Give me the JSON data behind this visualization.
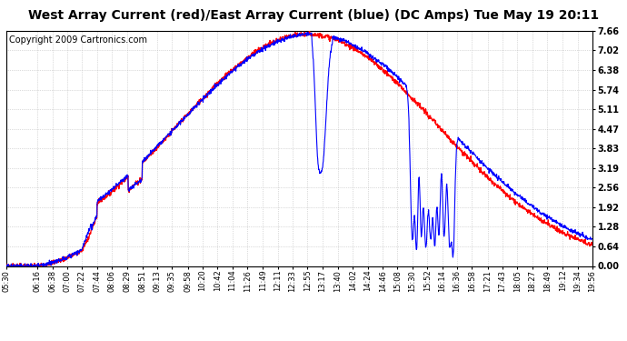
{
  "title": "West Array Current (red)/East Array Current (blue) (DC Amps) Tue May 19 20:11",
  "copyright": "Copyright 2009 Cartronics.com",
  "ylabel_right_ticks": [
    0.0,
    0.64,
    1.28,
    1.92,
    2.56,
    3.19,
    3.83,
    4.47,
    5.11,
    5.74,
    6.38,
    7.02,
    7.66
  ],
  "ymax": 7.66,
  "ymin": 0.0,
  "grid_color": "#bbbbbb",
  "x_labels": [
    "05:30",
    "06:16",
    "06:38",
    "07:00",
    "07:22",
    "07:44",
    "08:06",
    "08:29",
    "08:51",
    "09:13",
    "09:35",
    "09:58",
    "10:20",
    "10:42",
    "11:04",
    "11:26",
    "11:49",
    "12:11",
    "12:33",
    "12:55",
    "13:17",
    "13:40",
    "14:02",
    "14:24",
    "14:46",
    "15:08",
    "15:30",
    "15:52",
    "16:14",
    "16:36",
    "16:58",
    "17:21",
    "17:43",
    "18:05",
    "18:27",
    "18:49",
    "19:12",
    "19:34",
    "19:56"
  ],
  "red_color": "#ff0000",
  "blue_color": "#0000ff",
  "title_fontsize": 10,
  "copyright_fontsize": 7,
  "tick_fontsize": 7,
  "x_tick_fontsize": 6
}
